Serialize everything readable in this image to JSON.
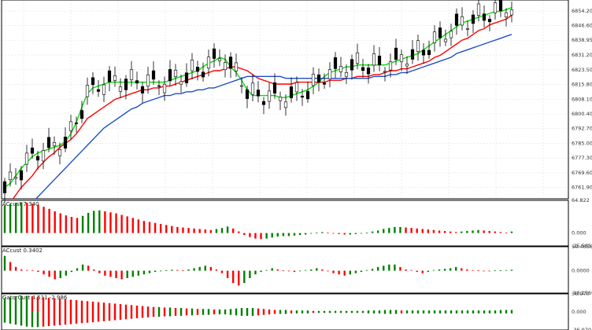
{
  "chart_data": [
    {
      "type": "candlestick",
      "title": "",
      "ylim": [
        6756.0,
        6860.0
      ],
      "grid": true,
      "y_ticks": [
        "6854.20",
        "6846.60",
        "6838.95",
        "6831.20",
        "6823.50",
        "6815.80",
        "6808.10",
        "6800.40",
        "6792.70",
        "6785.00",
        "6777.30",
        "6769.60",
        "6761.90"
      ],
      "overlays": [
        {
          "name": "",
          "color": "#00e000",
          "values": [
            6762,
            6764,
            6768,
            6772,
            6775,
            6778,
            6780,
            6781,
            6782,
            6783,
            6784,
            6786,
            6790,
            6796,
            6804,
            6811,
            6814,
            6815,
            6816,
            6817,
            6817,
            6817,
            6817,
            6817,
            6817,
            6817,
            6817,
            6817,
            6817,
            6817,
            6818,
            6819,
            6820,
            6821,
            6822,
            6823,
            6825,
            6827,
            6828,
            6830,
            6829,
            6825,
            6822,
            6818,
            6813,
            6810,
            6810,
            6810,
            6810,
            6810,
            6809,
            6809,
            6810,
            6811,
            6812,
            6813,
            6815,
            6817,
            6820,
            6822,
            6823,
            6824,
            6825,
            6825,
            6826,
            6826,
            6826,
            6826,
            6826,
            6826,
            6827,
            6828,
            6829,
            6830,
            6831,
            6832,
            6834,
            6836,
            6838,
            6840,
            6842,
            6844,
            6846,
            6848,
            6849,
            6850,
            6851,
            6852,
            6853,
            6854,
            6854,
            6855,
            6856
          ]
        },
        {
          "name": "",
          "color": "#ff0000",
          "values": [
            6752,
            6754,
            6758,
            6762,
            6765,
            6768,
            6772,
            6775,
            6778,
            6780,
            6783,
            6785,
            6787,
            6790,
            6794,
            6798,
            6800,
            6802,
            6804,
            6806,
            6808,
            6809,
            6810,
            6811,
            6812,
            6813,
            6813,
            6814,
            6814,
            6815,
            6815,
            6816,
            6817,
            6818,
            6819,
            6820,
            6821,
            6822,
            6823,
            6823,
            6824,
            6825,
            6825,
            6824,
            6823,
            6821,
            6819,
            6818,
            6817,
            6816,
            6816,
            6816,
            6816,
            6817,
            6817,
            6817,
            6817,
            6817,
            6817,
            6818,
            6818,
            6818,
            6819,
            6819,
            6820,
            6820,
            6820,
            6821,
            6821,
            6822,
            6823,
            6823,
            6824,
            6824,
            6825,
            6826,
            6827,
            6828,
            6830,
            6831,
            6833,
            6835,
            6837,
            6839,
            6840,
            6842,
            6844,
            6845,
            6847,
            6848,
            6849,
            6850,
            6852
          ]
        },
        {
          "name": "",
          "color": "#1e4fc4",
          "values": [
            6740,
            6742,
            6745,
            6748,
            6751,
            6754,
            6757,
            6760,
            6763,
            6766,
            6769,
            6772,
            6775,
            6778,
            6781,
            6784,
            6787,
            6790,
            6793,
            6795,
            6797,
            6799,
            6801,
            6803,
            6804,
            6806,
            6807,
            6808,
            6809,
            6810,
            6810,
            6811,
            6811,
            6812,
            6812,
            6813,
            6813,
            6814,
            6814,
            6815,
            6816,
            6817,
            6818,
            6819,
            6820,
            6820,
            6820,
            6820,
            6820,
            6820,
            6820,
            6819,
            6819,
            6819,
            6819,
            6819,
            6819,
            6819,
            6819,
            6819,
            6819,
            6819,
            6819,
            6819,
            6819,
            6819,
            6819,
            6820,
            6820,
            6820,
            6821,
            6821,
            6822,
            6822,
            6823,
            6824,
            6825,
            6826,
            6827,
            6828,
            6829,
            6830,
            6832,
            6833,
            6834,
            6835,
            6836,
            6837,
            6838,
            6839,
            6840,
            6841,
            6842
          ]
        }
      ]
    },
    {
      "type": "bar",
      "title": "ACcust 7.340",
      "ylim": [
        -25.565,
        64.822
      ],
      "y_ticks": [
        "64.822",
        "0.000",
        "-25.565"
      ],
      "up_color": "#008000",
      "down_color": "#ff0000",
      "values": [
        55,
        58,
        60,
        61,
        60,
        58,
        56,
        52,
        48,
        43,
        39,
        35,
        32,
        30,
        34,
        40,
        44,
        45,
        43,
        41,
        39,
        36,
        33,
        30,
        27,
        24,
        22,
        20,
        18,
        16,
        14,
        12,
        11,
        10,
        9,
        8,
        7,
        6,
        8,
        10,
        13,
        9,
        3,
        -4,
        -8,
        -11,
        -12,
        -11,
        -9,
        -7,
        -6,
        -6,
        -5,
        -4,
        -3,
        -1,
        1,
        2,
        1,
        -1,
        -2,
        -3,
        -3,
        -2,
        -1,
        1,
        3,
        5,
        8,
        10,
        12,
        12,
        11,
        10,
        9,
        8,
        7,
        6,
        5,
        4,
        3,
        2,
        3,
        4,
        5,
        6,
        5,
        4,
        3,
        2,
        1,
        3
      ]
    },
    {
      "type": "bar",
      "title": "ACcust 0.3402",
      "ylim": [
        -18.1569,
        19.4656
      ],
      "y_ticks": [
        "19.4656",
        "0.0000",
        "-18.1569"
      ],
      "up_color": "#008000",
      "down_color": "#ff0000",
      "values": [
        12,
        7,
        3,
        1,
        0.5,
        0.3,
        -1,
        -3,
        -5,
        -7,
        -6,
        -4,
        -1,
        2,
        5,
        4,
        1,
        -2,
        -4,
        -5,
        -6,
        -7,
        -6,
        -5,
        -4,
        -3,
        -2,
        -1,
        -0.5,
        0.3,
        0.8,
        0.6,
        0.3,
        1,
        2,
        3,
        4,
        3,
        1,
        -2,
        -6,
        -10,
        -12,
        -10,
        -6,
        -3,
        -1,
        0.5,
        2,
        1,
        0.3,
        -0.5,
        -1,
        -0.5,
        0.5,
        1,
        2,
        1,
        -0.5,
        -2,
        -3,
        -4,
        -3,
        -2,
        -1,
        0.5,
        1.5,
        3,
        4,
        5,
        5,
        3,
        1,
        0.5,
        -1,
        -2,
        -1,
        0.5,
        1,
        1.5,
        2,
        3,
        2,
        1,
        0.5,
        0.2,
        -0.2,
        -0.3,
        0.2,
        0.3,
        0.5,
        0.8
      ]
    },
    {
      "type": "bar",
      "title": "GatorCust 4.511 -2.986",
      "ylim": [
        -36.97,
        36.97
      ],
      "y_ticks": [
        "36.970",
        "0.000",
        "-36.970"
      ],
      "up_color": "#008000",
      "down_color": "#ff0000",
      "upper": [
        28,
        30,
        32,
        33,
        33,
        32,
        31,
        30,
        29,
        28,
        27,
        26,
        25,
        24,
        23,
        22,
        21,
        20,
        19,
        18,
        17,
        16,
        15,
        14,
        13,
        12,
        11,
        10,
        10,
        9,
        9,
        8,
        8,
        7,
        7,
        6,
        6,
        6,
        5,
        5,
        5,
        6,
        7,
        8,
        8,
        8,
        7,
        6,
        5,
        4,
        4,
        4,
        3,
        3,
        3,
        3,
        2,
        2,
        2,
        2,
        2,
        2,
        2,
        2,
        2,
        2,
        3,
        3,
        3,
        4,
        4,
        4,
        3,
        3,
        3,
        3,
        3,
        3,
        3,
        3,
        3,
        3,
        3,
        3,
        3,
        3,
        3,
        3,
        3,
        3,
        4,
        4,
        4
      ],
      "lower": [
        -22,
        -24,
        -26,
        -28,
        -30,
        -31,
        -31,
        -30,
        -29,
        -28,
        -27,
        -26,
        -25,
        -24,
        -23,
        -22,
        -21,
        -20,
        -19,
        -18,
        -17,
        -16,
        -15,
        -14,
        -13,
        -12,
        -11,
        -10,
        -10,
        -9,
        -9,
        -8,
        -8,
        -7,
        -7,
        -6,
        -6,
        -6,
        -5,
        -5,
        -5,
        -6,
        -7,
        -8,
        -8,
        -8,
        -7,
        -6,
        -5,
        -4,
        -4,
        -4,
        -3,
        -3,
        -3,
        -3,
        -2,
        -2,
        -2,
        -2,
        -2,
        -2,
        -2,
        -2,
        -2,
        -2,
        -3,
        -3,
        -3,
        -4,
        -4,
        -4,
        -3,
        -3,
        -3,
        -3,
        -3,
        -3,
        -3,
        -3,
        -3,
        -3,
        -3,
        -3,
        -3,
        -3,
        -3,
        -3,
        -3,
        -3,
        -3,
        -3,
        -3
      ]
    }
  ]
}
